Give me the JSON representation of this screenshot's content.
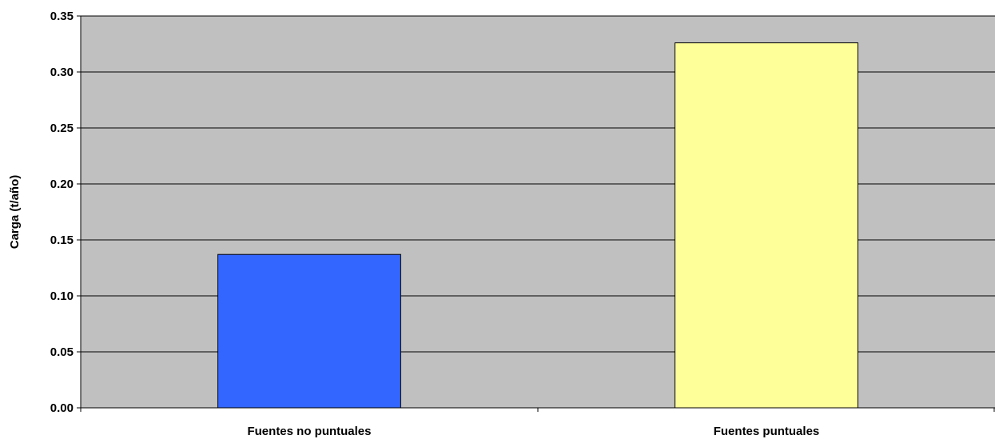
{
  "chart_data": {
    "type": "bar",
    "title": "",
    "xlabel": "",
    "ylabel": "Carga (t/año)",
    "categories": [
      "Fuentes no puntuales",
      "Fuentes puntuales"
    ],
    "values": [
      0.137,
      0.326
    ],
    "ylim": [
      0,
      0.35
    ],
    "yticks": [
      0.0,
      0.05,
      0.1,
      0.15,
      0.2,
      0.25,
      0.3,
      0.35
    ],
    "ytick_labels": [
      "0.00",
      "0.05",
      "0.10",
      "0.15",
      "0.20",
      "0.25",
      "0.30",
      "0.35"
    ],
    "grid": true,
    "legend": "none",
    "colors": {
      "plot_background": "#c0c0c0",
      "bars": [
        "#3366ff",
        "#ffff99"
      ],
      "bar_outline": "#000000",
      "gridline": "#000000"
    }
  }
}
